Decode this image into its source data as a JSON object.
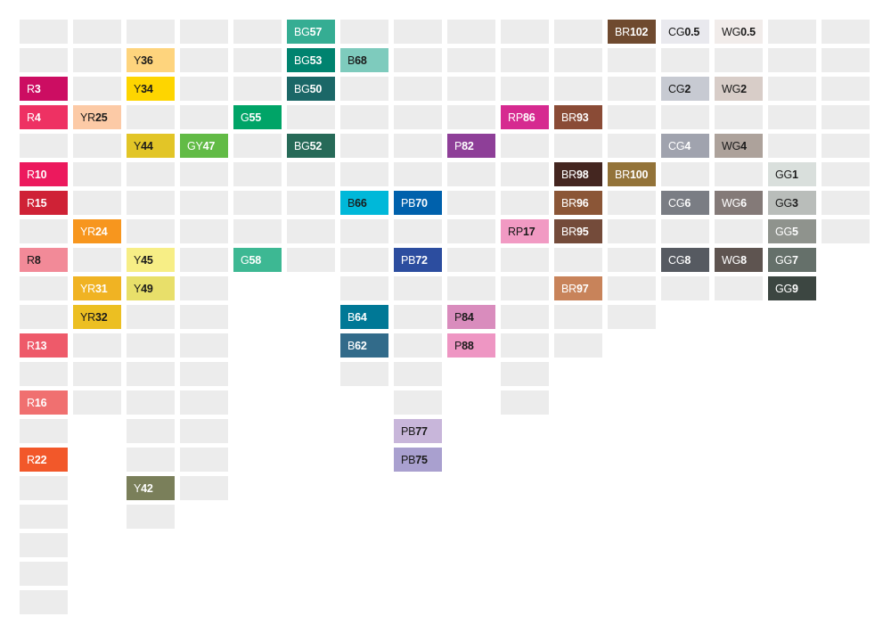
{
  "empty_color": "#ececec",
  "column_lengths": [
    21,
    14,
    18,
    17,
    9,
    9,
    13,
    16,
    12,
    14,
    12,
    11,
    10,
    10,
    10,
    8
  ],
  "swatches": [
    {
      "col": 0,
      "row": 2,
      "prefix": "R",
      "num": "3",
      "color": "#cc0d62",
      "fg": "#ffffff"
    },
    {
      "col": 0,
      "row": 3,
      "prefix": "R",
      "num": "4",
      "color": "#ee3163",
      "fg": "#ffffff"
    },
    {
      "col": 0,
      "row": 5,
      "prefix": "R",
      "num": "10",
      "color": "#ec195d",
      "fg": "#ffffff"
    },
    {
      "col": 0,
      "row": 6,
      "prefix": "R",
      "num": "15",
      "color": "#cf2236",
      "fg": "#ffffff"
    },
    {
      "col": 0,
      "row": 8,
      "prefix": "R",
      "num": "8",
      "color": "#f28a98",
      "fg": "#1a1a1a"
    },
    {
      "col": 0,
      "row": 11,
      "prefix": "R",
      "num": "13",
      "color": "#ee5a6a",
      "fg": "#ffffff"
    },
    {
      "col": 0,
      "row": 13,
      "prefix": "R",
      "num": "16",
      "color": "#f07070",
      "fg": "#ffffff"
    },
    {
      "col": 0,
      "row": 15,
      "prefix": "R",
      "num": "22",
      "color": "#f2582a",
      "fg": "#ffffff"
    },
    {
      "col": 1,
      "row": 3,
      "prefix": "YR",
      "num": "25",
      "color": "#fccaa6",
      "fg": "#1a1a1a"
    },
    {
      "col": 1,
      "row": 7,
      "prefix": "YR",
      "num": "24",
      "color": "#f7961e",
      "fg": "#ffffff"
    },
    {
      "col": 1,
      "row": 9,
      "prefix": "YR",
      "num": "31",
      "color": "#f0b323",
      "fg": "#ffffff"
    },
    {
      "col": 1,
      "row": 10,
      "prefix": "YR",
      "num": "32",
      "color": "#ecbf22",
      "fg": "#1a1a1a"
    },
    {
      "col": 2,
      "row": 1,
      "prefix": "Y",
      "num": "36",
      "color": "#fed47d",
      "fg": "#1a1a1a"
    },
    {
      "col": 2,
      "row": 2,
      "prefix": "Y",
      "num": "34",
      "color": "#fed500",
      "fg": "#1a1a1a"
    },
    {
      "col": 2,
      "row": 4,
      "prefix": "Y",
      "num": "44",
      "color": "#e2c527",
      "fg": "#1a1a1a"
    },
    {
      "col": 2,
      "row": 8,
      "prefix": "Y",
      "num": "45",
      "color": "#f7ee86",
      "fg": "#1a1a1a"
    },
    {
      "col": 2,
      "row": 9,
      "prefix": "Y",
      "num": "49",
      "color": "#e8df6a",
      "fg": "#1a1a1a"
    },
    {
      "col": 2,
      "row": 16,
      "prefix": "Y",
      "num": "42",
      "color": "#7a7f5a",
      "fg": "#ffffff"
    },
    {
      "col": 3,
      "row": 4,
      "prefix": "GY",
      "num": "47",
      "color": "#62bb46",
      "fg": "#ffffff"
    },
    {
      "col": 4,
      "row": 3,
      "prefix": "G",
      "num": "55",
      "color": "#00a467",
      "fg": "#ffffff"
    },
    {
      "col": 4,
      "row": 8,
      "prefix": "G",
      "num": "58",
      "color": "#3db893",
      "fg": "#ffffff"
    },
    {
      "col": 5,
      "row": 0,
      "prefix": "BG",
      "num": "57",
      "color": "#35ad93",
      "fg": "#ffffff"
    },
    {
      "col": 5,
      "row": 1,
      "prefix": "BG",
      "num": "53",
      "color": "#00836f",
      "fg": "#ffffff"
    },
    {
      "col": 5,
      "row": 2,
      "prefix": "BG",
      "num": "50",
      "color": "#1b6767",
      "fg": "#ffffff"
    },
    {
      "col": 5,
      "row": 4,
      "prefix": "BG",
      "num": "52",
      "color": "#276a58",
      "fg": "#ffffff"
    },
    {
      "col": 6,
      "row": 1,
      "prefix": "B",
      "num": "68",
      "color": "#7ecbbd",
      "fg": "#1a1a1a"
    },
    {
      "col": 6,
      "row": 6,
      "prefix": "B",
      "num": "66",
      "color": "#00b8d9",
      "fg": "#1a1a1a"
    },
    {
      "col": 6,
      "row": 10,
      "prefix": "B",
      "num": "64",
      "color": "#007896",
      "fg": "#ffffff"
    },
    {
      "col": 6,
      "row": 11,
      "prefix": "B",
      "num": "62",
      "color": "#326b8a",
      "fg": "#ffffff"
    },
    {
      "col": 7,
      "row": 6,
      "prefix": "PB",
      "num": "70",
      "color": "#0061ac",
      "fg": "#ffffff"
    },
    {
      "col": 7,
      "row": 8,
      "prefix": "PB",
      "num": "72",
      "color": "#2c4d9f",
      "fg": "#ffffff"
    },
    {
      "col": 7,
      "row": 14,
      "prefix": "PB",
      "num": "77",
      "color": "#c8b6da",
      "fg": "#1a1a1a"
    },
    {
      "col": 7,
      "row": 15,
      "prefix": "PB",
      "num": "75",
      "color": "#a9a0cf",
      "fg": "#1a1a1a"
    },
    {
      "col": 8,
      "row": 4,
      "prefix": "P",
      "num": "82",
      "color": "#8e3f98",
      "fg": "#ffffff"
    },
    {
      "col": 8,
      "row": 10,
      "prefix": "P",
      "num": "84",
      "color": "#d98cbd",
      "fg": "#1a1a1a"
    },
    {
      "col": 8,
      "row": 11,
      "prefix": "P",
      "num": "88",
      "color": "#ee96c3",
      "fg": "#1a1a1a"
    },
    {
      "col": 9,
      "row": 3,
      "prefix": "RP",
      "num": "86",
      "color": "#d62a90",
      "fg": "#ffffff"
    },
    {
      "col": 9,
      "row": 7,
      "prefix": "RP",
      "num": "17",
      "color": "#f19ac3",
      "fg": "#1a1a1a"
    },
    {
      "col": 10,
      "row": 3,
      "prefix": "BR",
      "num": "93",
      "color": "#8a4b36",
      "fg": "#ffffff"
    },
    {
      "col": 10,
      "row": 5,
      "prefix": "BR",
      "num": "98",
      "color": "#442620",
      "fg": "#ffffff"
    },
    {
      "col": 10,
      "row": 6,
      "prefix": "BR",
      "num": "96",
      "color": "#8b5637",
      "fg": "#ffffff"
    },
    {
      "col": 10,
      "row": 7,
      "prefix": "BR",
      "num": "95",
      "color": "#744b3a",
      "fg": "#ffffff"
    },
    {
      "col": 10,
      "row": 9,
      "prefix": "BR",
      "num": "97",
      "color": "#c8835a",
      "fg": "#ffffff"
    },
    {
      "col": 11,
      "row": 0,
      "prefix": "BR",
      "num": "102",
      "color": "#6f4a2f",
      "fg": "#ffffff"
    },
    {
      "col": 11,
      "row": 5,
      "prefix": "BR",
      "num": "100",
      "color": "#937339",
      "fg": "#ffffff"
    },
    {
      "col": 12,
      "row": 0,
      "prefix": "CG",
      "num": "0.5",
      "color": "#e9e9ee",
      "fg": "#1a1a1a"
    },
    {
      "col": 12,
      "row": 2,
      "prefix": "CG",
      "num": "2",
      "color": "#c7cad2",
      "fg": "#1a1a1a"
    },
    {
      "col": 12,
      "row": 4,
      "prefix": "CG",
      "num": "4",
      "color": "#a0a3ae",
      "fg": "#ffffff"
    },
    {
      "col": 12,
      "row": 6,
      "prefix": "CG",
      "num": "6",
      "color": "#7a7d84",
      "fg": "#ffffff"
    },
    {
      "col": 12,
      "row": 8,
      "prefix": "CG",
      "num": "8",
      "color": "#565a61",
      "fg": "#ffffff"
    },
    {
      "col": 13,
      "row": 0,
      "prefix": "WG",
      "num": "0.5",
      "color": "#f1ecea",
      "fg": "#1a1a1a"
    },
    {
      "col": 13,
      "row": 2,
      "prefix": "WG",
      "num": "2",
      "color": "#d8cdc8",
      "fg": "#1a1a1a"
    },
    {
      "col": 13,
      "row": 4,
      "prefix": "WG",
      "num": "4",
      "color": "#ada29b",
      "fg": "#1a1a1a"
    },
    {
      "col": 13,
      "row": 6,
      "prefix": "WG",
      "num": "6",
      "color": "#847a78",
      "fg": "#ffffff"
    },
    {
      "col": 13,
      "row": 8,
      "prefix": "WG",
      "num": "8",
      "color": "#5e5450",
      "fg": "#ffffff"
    },
    {
      "col": 14,
      "row": 5,
      "prefix": "GG",
      "num": "1",
      "color": "#d9dfdc",
      "fg": "#1a1a1a"
    },
    {
      "col": 14,
      "row": 6,
      "prefix": "GG",
      "num": "3",
      "color": "#b9bdba",
      "fg": "#1a1a1a"
    },
    {
      "col": 14,
      "row": 7,
      "prefix": "GG",
      "num": "5",
      "color": "#8f938d",
      "fg": "#ffffff"
    },
    {
      "col": 14,
      "row": 8,
      "prefix": "GG",
      "num": "7",
      "color": "#65706a",
      "fg": "#ffffff"
    },
    {
      "col": 14,
      "row": 9,
      "prefix": "GG",
      "num": "9",
      "color": "#3c4641",
      "fg": "#ffffff"
    }
  ]
}
